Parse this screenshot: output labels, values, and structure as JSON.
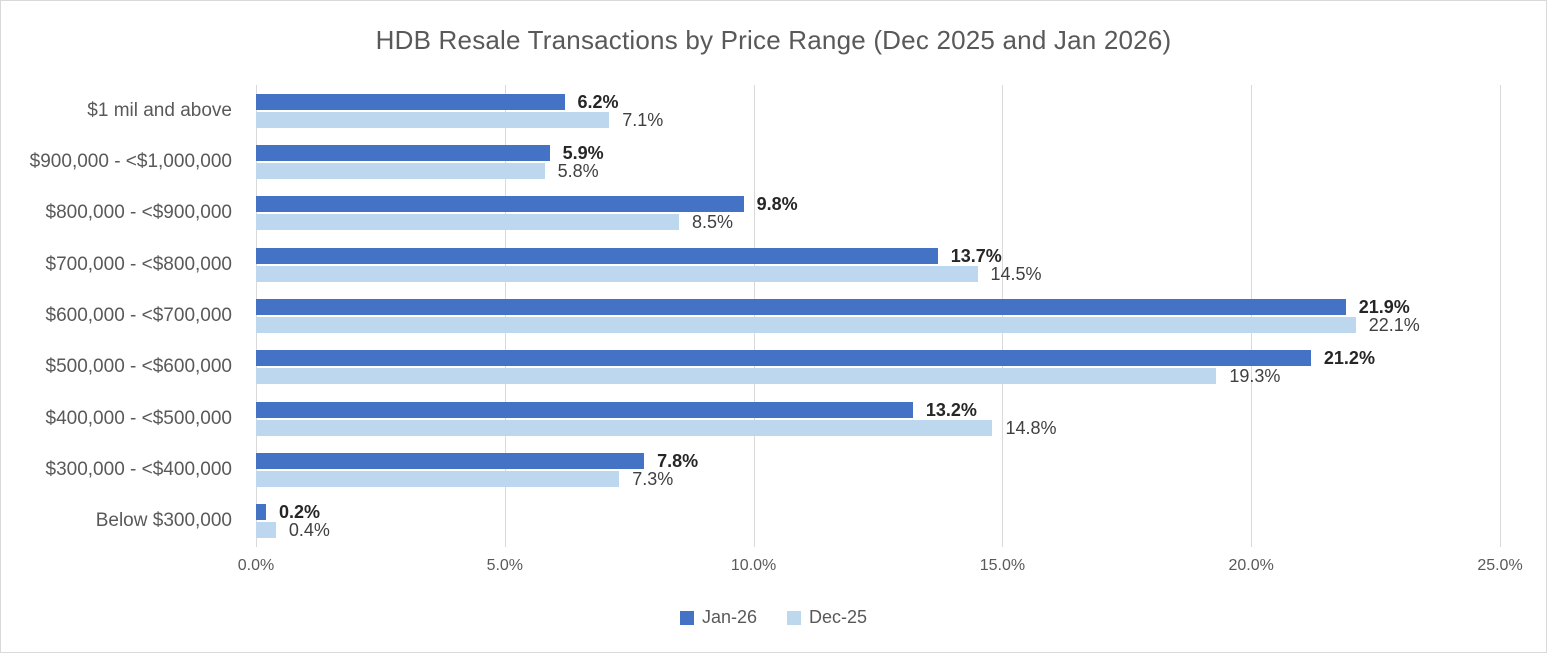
{
  "chart_data": {
    "type": "bar",
    "orientation": "horizontal",
    "title": "HDB Resale Transactions by Price Range (Dec 2025 and Jan 2026)",
    "categories": [
      "$1 mil and above",
      "$900,000 - <$1,000,000",
      "$800,000 - <$900,000",
      "$700,000 - <$800,000",
      "$600,000 - <$700,000",
      "$500,000 - <$600,000",
      "$400,000 - <$500,000",
      "$300,000 - <$400,000",
      "Below $300,000"
    ],
    "series": [
      {
        "name": "Jan-26",
        "color": "#4472C4",
        "values": [
          6.2,
          5.9,
          9.8,
          13.7,
          21.9,
          21.2,
          13.2,
          7.8,
          0.2
        ],
        "labels": [
          "6.2%",
          "5.9%",
          "9.8%",
          "13.7%",
          "21.9%",
          "21.2%",
          "13.2%",
          "7.8%",
          "0.2%"
        ]
      },
      {
        "name": "Dec-25",
        "color": "#BDD7EE",
        "values": [
          7.1,
          5.8,
          8.5,
          14.5,
          22.1,
          19.3,
          14.8,
          7.3,
          0.4
        ],
        "labels": [
          "7.1%",
          "5.8%",
          "8.5%",
          "14.5%",
          "22.1%",
          "19.3%",
          "14.8%",
          "7.3%",
          "0.4%"
        ]
      }
    ],
    "x_axis": {
      "min": 0,
      "max": 25,
      "ticks": [
        "0.0%",
        "5.0%",
        "10.0%",
        "15.0%",
        "20.0%",
        "25.0%"
      ]
    },
    "legend": {
      "position": "bottom",
      "entries": [
        "Jan-26",
        "Dec-25"
      ]
    },
    "grid": true,
    "gridline_color": "#D9D9D9"
  }
}
